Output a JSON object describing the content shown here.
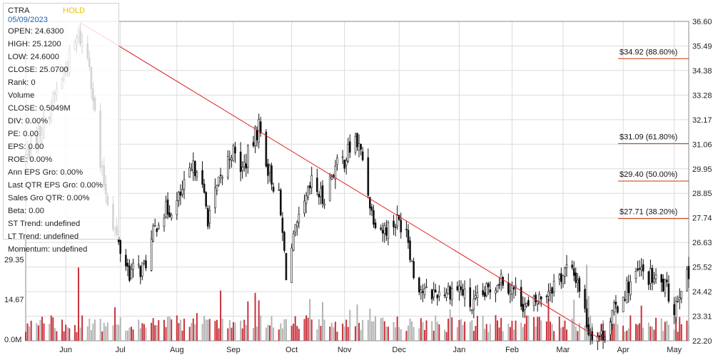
{
  "info": {
    "symbol": "CTRA",
    "rating": "HOLD",
    "date": "05/09/2023",
    "lines": [
      "OPEN: 24.6300",
      "HIGH: 25.1200",
      "LOW: 24.6000",
      "CLOSE: 25.0700",
      "Rank: 0",
      "Volume",
      "CLOSE: 0.5049M",
      "DIV: 0.00%",
      "PE: 0.00",
      "EPS: 0.00",
      "ROE: 0.00%",
      "Ann EPS Gro: 0.00%",
      "Last QTR EPS Gro: 0.00%",
      "Sales Gro QTR: 0.00%",
      "Beta: 0.00",
      "ST Trend: undefined",
      "LT Trend: undefined",
      "Momentum: undefined"
    ]
  },
  "chart_data": {
    "type": "candlestick",
    "title": "",
    "x_tick_labels": [
      "Jun",
      "Jul",
      "Aug",
      "Sep",
      "Oct",
      "Nov",
      "Dec",
      "Jan",
      "Feb",
      "Mar",
      "Apr",
      "May"
    ],
    "price_axis": {
      "ticks": [
        "36.60",
        "35.49",
        "34.38",
        "33.28",
        "32.17",
        "31.06",
        "29.95",
        "28.85",
        "27.74",
        "26.63",
        "25.52",
        "24.42",
        "23.31",
        "22.20"
      ],
      "range": [
        22.2,
        36.6
      ]
    },
    "volume_axis": {
      "ticks": [
        "29.35",
        "14.67",
        "0.0M"
      ],
      "range": [
        0,
        29.35
      ]
    },
    "grid": true,
    "fibonacci_levels": [
      {
        "label": "$34.92 (88.60%)",
        "price": 34.92
      },
      {
        "label": "$31.09 (61.80%)",
        "price": 31.09
      },
      {
        "label": "$29.40 (50.00%)",
        "price": 29.4
      },
      {
        "label": "$27.71 (38.20%)",
        "price": 27.71
      }
    ],
    "trend_line": {
      "start": {
        "date": "2022-06-10",
        "price": 36.5
      },
      "end": {
        "date": "2023-03-23",
        "price": 22.2
      },
      "color": "#dd2222"
    },
    "colors": {
      "up_volume": "#c8323c",
      "down_volume": "#b4b4b4",
      "candle": "#111111",
      "fib_line": "#cc3300",
      "grid": "#dcdcdc",
      "trend": "#dd2222"
    },
    "price_anchors": [
      {
        "date": "2022-05-10",
        "close": 30.5
      },
      {
        "date": "2022-05-20",
        "close": 32.0
      },
      {
        "date": "2022-06-01",
        "close": 34.5
      },
      {
        "date": "2022-06-08",
        "close": 36.0
      },
      {
        "date": "2022-06-14",
        "close": 34.8
      },
      {
        "date": "2022-06-20",
        "close": 30.0
      },
      {
        "date": "2022-06-30",
        "close": 26.5
      },
      {
        "date": "2022-07-06",
        "close": 25.3
      },
      {
        "date": "2022-07-14",
        "close": 25.5
      },
      {
        "date": "2022-07-22",
        "close": 27.8
      },
      {
        "date": "2022-08-01",
        "close": 28.4
      },
      {
        "date": "2022-08-08",
        "close": 29.6
      },
      {
        "date": "2022-08-12",
        "close": 30.2
      },
      {
        "date": "2022-08-18",
        "close": 27.8
      },
      {
        "date": "2022-08-24",
        "close": 29.2
      },
      {
        "date": "2022-08-31",
        "close": 30.8
      },
      {
        "date": "2022-09-06",
        "close": 29.9
      },
      {
        "date": "2022-09-12",
        "close": 31.2
      },
      {
        "date": "2022-09-15",
        "close": 31.9
      },
      {
        "date": "2022-09-20",
        "close": 30.0
      },
      {
        "date": "2022-09-26",
        "close": 28.6
      },
      {
        "date": "2022-09-30",
        "close": 25.3
      },
      {
        "date": "2022-10-05",
        "close": 27.0
      },
      {
        "date": "2022-10-10",
        "close": 28.2
      },
      {
        "date": "2022-10-14",
        "close": 29.3
      },
      {
        "date": "2022-10-20",
        "close": 28.6
      },
      {
        "date": "2022-10-26",
        "close": 29.9
      },
      {
        "date": "2022-11-01",
        "close": 30.4
      },
      {
        "date": "2022-11-07",
        "close": 31.3
      },
      {
        "date": "2022-11-11",
        "close": 30.4
      },
      {
        "date": "2022-11-16",
        "close": 28.0
      },
      {
        "date": "2022-11-22",
        "close": 27.2
      },
      {
        "date": "2022-11-30",
        "close": 27.6
      },
      {
        "date": "2022-12-05",
        "close": 27.4
      },
      {
        "date": "2022-12-09",
        "close": 25.2
      },
      {
        "date": "2022-12-15",
        "close": 24.3
      },
      {
        "date": "2022-12-22",
        "close": 24.4
      },
      {
        "date": "2023-01-03",
        "close": 24.6
      },
      {
        "date": "2023-01-10",
        "close": 23.7
      },
      {
        "date": "2023-01-17",
        "close": 24.3
      },
      {
        "date": "2023-01-26",
        "close": 25.1
      },
      {
        "date": "2023-02-03",
        "close": 24.4
      },
      {
        "date": "2023-02-10",
        "close": 23.6
      },
      {
        "date": "2023-02-17",
        "close": 24.2
      },
      {
        "date": "2023-02-24",
        "close": 24.8
      },
      {
        "date": "2023-03-03",
        "close": 25.4
      },
      {
        "date": "2023-03-09",
        "close": 25.0
      },
      {
        "date": "2023-03-15",
        "close": 22.7
      },
      {
        "date": "2023-03-22",
        "close": 22.4
      },
      {
        "date": "2023-03-29",
        "close": 23.5
      },
      {
        "date": "2023-04-05",
        "close": 24.6
      },
      {
        "date": "2023-04-12",
        "close": 25.3
      },
      {
        "date": "2023-04-19",
        "close": 25.0
      },
      {
        "date": "2023-04-26",
        "close": 24.6
      },
      {
        "date": "2023-05-01",
        "close": 23.7
      },
      {
        "date": "2023-05-05",
        "close": 24.8
      },
      {
        "date": "2023-05-09",
        "close": 25.07
      }
    ]
  }
}
